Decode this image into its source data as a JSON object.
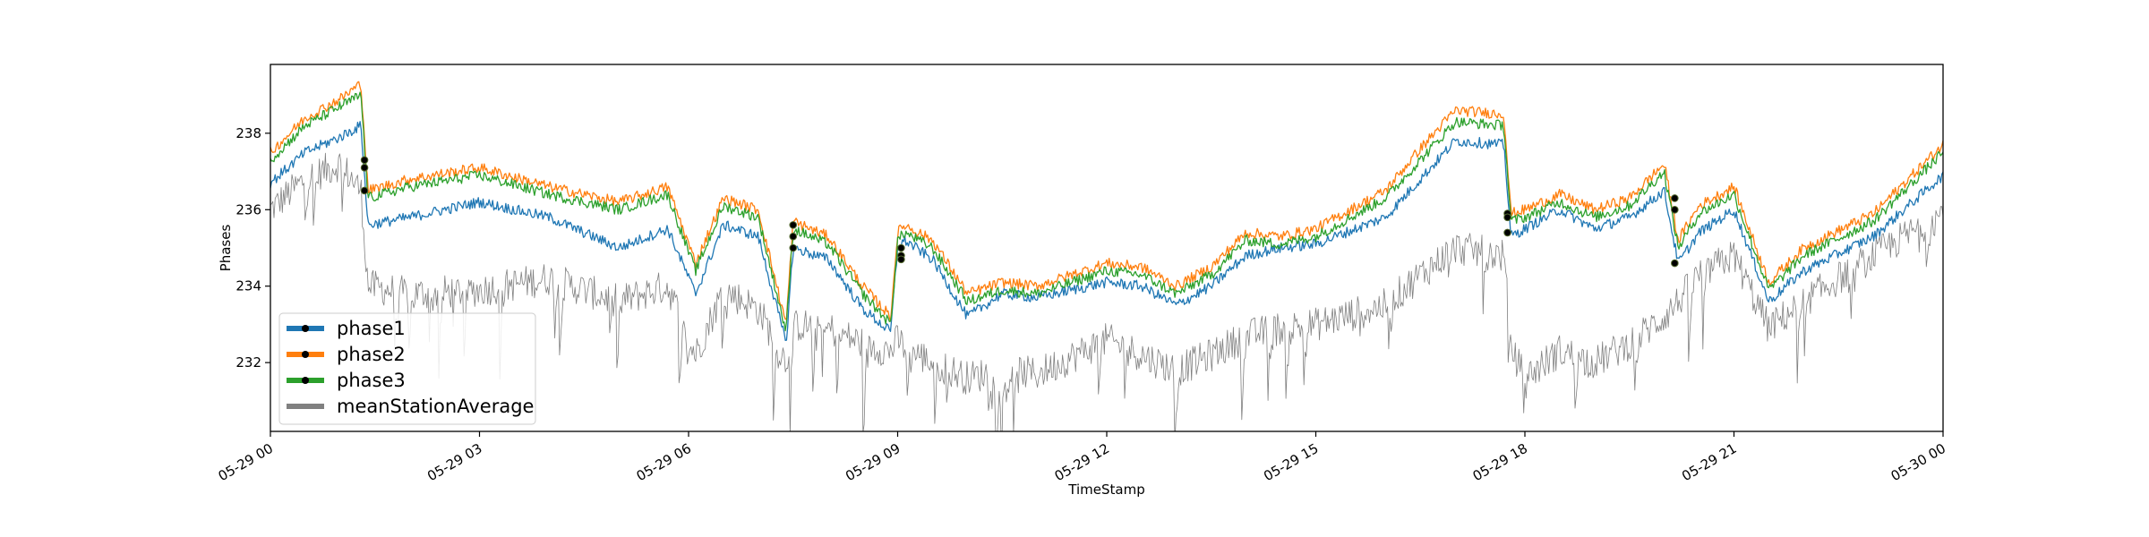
{
  "chart_data": {
    "type": "line",
    "xlabel": "TimeStamp",
    "ylabel": "Phases",
    "xlim": [
      "05-29 00",
      "05-30 00"
    ],
    "ylim": [
      230.2,
      239.8
    ],
    "x_ticks": [
      "05-29 00",
      "05-29 03",
      "05-29 06",
      "05-29 09",
      "05-29 12",
      "05-29 15",
      "05-29 18",
      "05-29 21",
      "05-30 00"
    ],
    "y_ticks": [
      232,
      234,
      236,
      238
    ],
    "grid": false,
    "legend_position": "lower-left",
    "x_hours": [
      0,
      0.5,
      1,
      1.3,
      1.4,
      2,
      3,
      4,
      5,
      5.7,
      6.1,
      6.5,
      7,
      7.4,
      7.5,
      8,
      8.5,
      8.9,
      9.0,
      9.1,
      9.5,
      10,
      10.5,
      11,
      12,
      12.5,
      13,
      13.5,
      14,
      14.5,
      15,
      16,
      16.5,
      17,
      17.7,
      17.8,
      18,
      18.5,
      19,
      19.5,
      20.0,
      20.2,
      20.5,
      21,
      21.5,
      22,
      23,
      24
    ],
    "series": [
      {
        "name": "phase1",
        "color": "#1f77b4",
        "values": [
          236.7,
          237.5,
          237.9,
          238.2,
          235.6,
          235.8,
          236.2,
          235.8,
          235.0,
          235.5,
          233.8,
          235.6,
          235.3,
          232.5,
          235.0,
          234.7,
          233.4,
          232.8,
          235.0,
          235.2,
          234.7,
          233.2,
          233.8,
          233.7,
          234.1,
          234.0,
          233.5,
          234.0,
          234.8,
          235.0,
          235.1,
          235.8,
          236.8,
          237.8,
          237.7,
          235.3,
          235.5,
          236.0,
          235.5,
          235.8,
          236.5,
          234.6,
          235.4,
          236.0,
          233.6,
          234.4,
          235.3,
          236.9
        ]
      },
      {
        "name": "phase2",
        "color": "#ff7f0e",
        "values": [
          237.5,
          238.4,
          238.9,
          239.3,
          236.5,
          236.8,
          237.1,
          236.6,
          236.2,
          236.6,
          234.6,
          236.3,
          236.0,
          233.0,
          235.7,
          235.3,
          234.0,
          233.2,
          235.4,
          235.6,
          235.2,
          233.8,
          234.1,
          234.0,
          234.6,
          234.5,
          234.0,
          234.5,
          235.4,
          235.3,
          235.5,
          236.5,
          237.6,
          238.6,
          238.5,
          235.9,
          236.0,
          236.4,
          236.0,
          236.3,
          237.2,
          235.2,
          236.1,
          236.6,
          234.1,
          235.0,
          235.9,
          237.7
        ]
      },
      {
        "name": "phase3",
        "color": "#2ca02c",
        "values": [
          237.3,
          238.2,
          238.7,
          239.0,
          236.3,
          236.6,
          236.9,
          236.4,
          236.0,
          236.4,
          234.4,
          236.1,
          235.8,
          232.8,
          235.5,
          235.1,
          233.8,
          233.0,
          235.2,
          235.4,
          235.0,
          233.6,
          233.9,
          233.8,
          234.4,
          234.3,
          233.8,
          234.3,
          235.2,
          235.1,
          235.3,
          236.3,
          237.3,
          238.3,
          238.2,
          235.7,
          235.8,
          236.2,
          235.8,
          236.1,
          237.0,
          235.0,
          235.9,
          236.4,
          233.9,
          234.8,
          235.7,
          237.5
        ]
      },
      {
        "name": "meanStationAverage",
        "color": "#808080",
        "values": [
          236.0,
          236.8,
          237.2,
          236.5,
          234.0,
          233.8,
          233.9,
          234.2,
          233.6,
          234.0,
          232.2,
          233.9,
          233.4,
          232.0,
          233.0,
          232.9,
          232.5,
          232.3,
          232.6,
          232.4,
          232.0,
          231.6,
          231.8,
          231.7,
          232.6,
          232.2,
          231.8,
          232.2,
          232.7,
          232.9,
          233.0,
          233.5,
          234.3,
          235.0,
          234.8,
          232.4,
          231.6,
          232.3,
          232.0,
          232.5,
          233.2,
          233.6,
          234.3,
          234.8,
          232.9,
          233.6,
          234.8,
          235.9
        ]
      }
    ],
    "markers": {
      "phase1": [
        [
          1.35,
          236.5
        ],
        [
          7.5,
          235.0
        ],
        [
          9.05,
          234.8
        ],
        [
          17.75,
          235.4
        ],
        [
          20.15,
          234.6
        ]
      ],
      "phase2": [
        [
          1.35,
          237.3
        ],
        [
          7.5,
          235.6
        ],
        [
          9.05,
          235.0
        ],
        [
          17.75,
          235.9
        ],
        [
          20.15,
          236.3
        ]
      ],
      "phase3": [
        [
          1.35,
          237.1
        ],
        [
          7.5,
          235.3
        ],
        [
          9.05,
          234.7
        ],
        [
          17.75,
          235.8
        ],
        [
          20.15,
          236.0
        ]
      ]
    },
    "legend": [
      {
        "label": "phase1",
        "color": "#1f77b4",
        "marker": true
      },
      {
        "label": "phase2",
        "color": "#ff7f0e",
        "marker": true
      },
      {
        "label": "phase3",
        "color": "#2ca02c",
        "marker": true
      },
      {
        "label": "meanStationAverage",
        "color": "#808080",
        "marker": false
      }
    ]
  }
}
